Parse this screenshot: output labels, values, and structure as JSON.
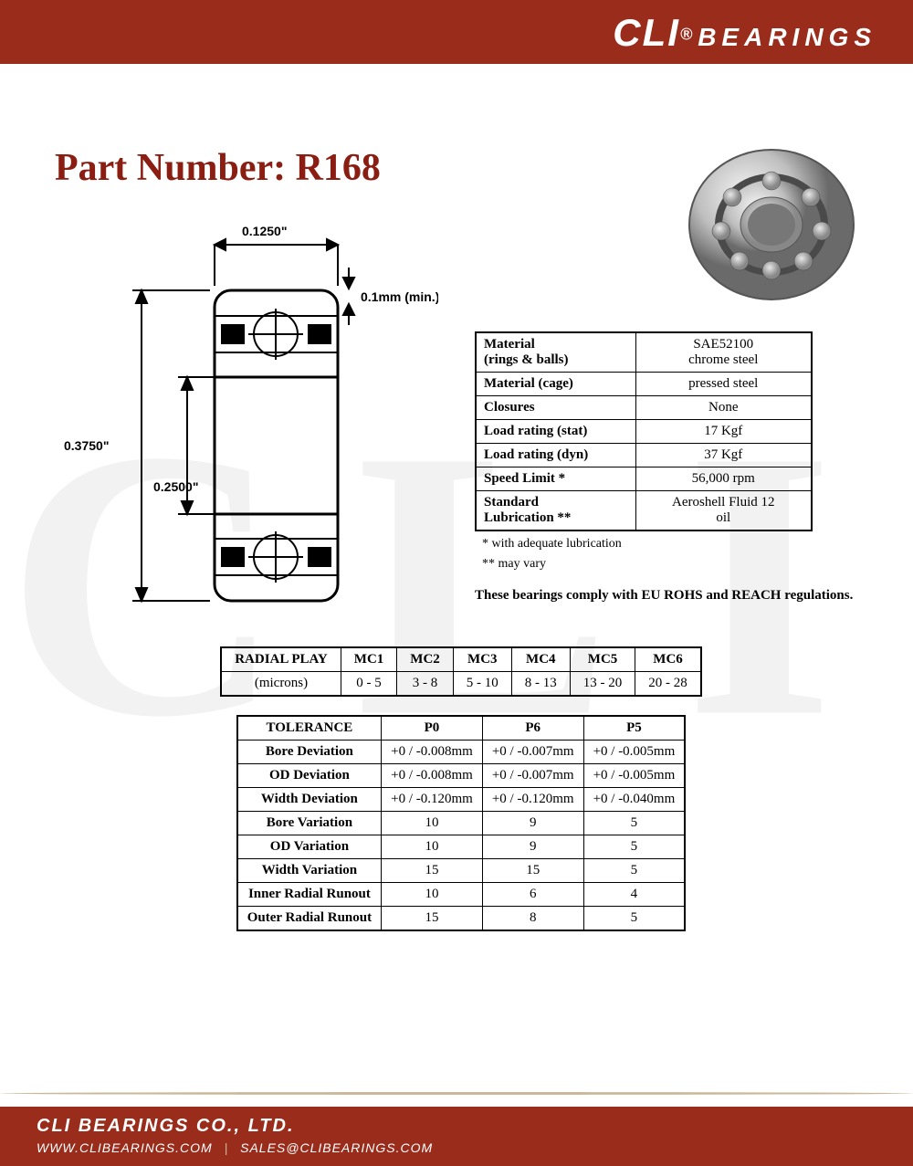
{
  "brand": {
    "name": "CLI",
    "reg": "®",
    "sub": "BEARINGS"
  },
  "title": "Part Number: R168",
  "watermark": "CLI",
  "diagram": {
    "width_label": "0.1250\"",
    "min_label": "0.1mm (min.)",
    "outer_label": "0.3750\"",
    "inner_label": "0.2500\""
  },
  "spec": {
    "rows": [
      {
        "k": "Material\n(rings & balls)",
        "v": "SAE52100\nchrome steel"
      },
      {
        "k": "Material (cage)",
        "v": "pressed steel"
      },
      {
        "k": "Closures",
        "v": "None"
      },
      {
        "k": "Load rating (stat)",
        "v": "17 Kgf"
      },
      {
        "k": "Load rating (dyn)",
        "v": "37 Kgf"
      },
      {
        "k": "Speed Limit *",
        "v": "56,000 rpm"
      },
      {
        "k": "Standard\nLubrication **",
        "v": "Aeroshell Fluid 12\noil"
      }
    ],
    "note1": "  * with adequate lubrication",
    "note2": "** may vary",
    "compliance": "These bearings comply with EU ROHS and REACH  regulations."
  },
  "radial": {
    "header": [
      "RADIAL PLAY",
      "MC1",
      "MC2",
      "MC3",
      "MC4",
      "MC5",
      "MC6"
    ],
    "unit": "(microns)",
    "values": [
      "0 - 5",
      "3 - 8",
      "5 - 10",
      "8 - 13",
      "13 - 20",
      "20 - 28"
    ]
  },
  "tol": {
    "header": [
      "TOLERANCE",
      "P0",
      "P6",
      "P5"
    ],
    "rows": [
      [
        "Bore Deviation",
        "+0 / -0.008mm",
        "+0 / -0.007mm",
        "+0 / -0.005mm"
      ],
      [
        "OD Deviation",
        "+0 / -0.008mm",
        "+0 / -0.007mm",
        "+0 / -0.005mm"
      ],
      [
        "Width Deviation",
        "+0 / -0.120mm",
        "+0 / -0.120mm",
        "+0 / -0.040mm"
      ],
      [
        "Bore Variation",
        "10",
        "9",
        "5"
      ],
      [
        "OD Variation",
        "10",
        "9",
        "5"
      ],
      [
        "Width Variation",
        "15",
        "15",
        "5"
      ],
      [
        "Inner Radial Runout",
        "10",
        "6",
        "4"
      ],
      [
        "Outer Radial Runout",
        "15",
        "8",
        "5"
      ]
    ]
  },
  "footer": {
    "company": "CLI BEARINGS CO., LTD.",
    "url": "WWW.CLIBEARINGS.COM",
    "email": "SALES@CLIBEARINGS.COM"
  },
  "colors": {
    "brand_red": "#9a2c1b",
    "title_red": "#8a1e12",
    "accent_tan": "#c9b89a",
    "watermark": "#f2f2f2",
    "border": "#000000"
  }
}
